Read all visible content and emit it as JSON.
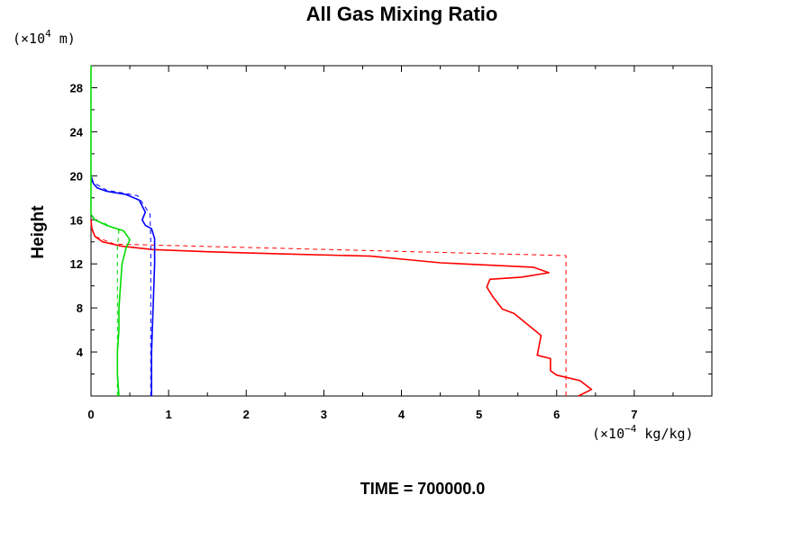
{
  "chart_data": {
    "type": "line",
    "title": "All Gas Mixing Ratio",
    "ylabel": "Height",
    "y_unit": {
      "prefix": "(×10",
      "exp": "4",
      "suffix": " m)"
    },
    "x_unit": {
      "prefix": "(×10",
      "exp": "−4",
      "suffix": " kg/kg)"
    },
    "footer": "TIME = 700000.0",
    "xlim": [
      0,
      8
    ],
    "ylim": [
      0,
      30
    ],
    "x_tick_labels": [
      "0",
      "1",
      "2",
      "3",
      "4",
      "5",
      "6",
      "7"
    ],
    "y_tick_labels": [
      "4",
      "8",
      "12",
      "16",
      "20",
      "24",
      "28"
    ],
    "grid": false,
    "series": [
      {
        "color": "#ff0000",
        "style": "solid",
        "points": [
          [
            6.28,
            0
          ],
          [
            6.45,
            0.6
          ],
          [
            6.3,
            1.4
          ],
          [
            6.0,
            1.9
          ],
          [
            5.92,
            2.3
          ],
          [
            5.92,
            3.4
          ],
          [
            5.75,
            3.7
          ],
          [
            5.8,
            5.5
          ],
          [
            5.45,
            7.5
          ],
          [
            5.3,
            7.9
          ],
          [
            5.18,
            9.0
          ],
          [
            5.1,
            9.9
          ],
          [
            5.14,
            10.6
          ],
          [
            5.55,
            10.8
          ],
          [
            5.9,
            11.2
          ],
          [
            5.7,
            11.7
          ],
          [
            4.5,
            12.1
          ],
          [
            4.2,
            12.3
          ],
          [
            3.6,
            12.7
          ],
          [
            2.5,
            12.9
          ],
          [
            1.5,
            13.1
          ],
          [
            0.8,
            13.3
          ],
          [
            0.4,
            13.6
          ],
          [
            0.15,
            14.0
          ],
          [
            0.05,
            14.5
          ],
          [
            0.01,
            15.2
          ],
          [
            0.0,
            16.0
          ]
        ]
      },
      {
        "color": "#ff0000",
        "style": "dashed",
        "points": [
          [
            6.12,
            0
          ],
          [
            6.12,
            12.75
          ],
          [
            0.3,
            13.8
          ],
          [
            0.05,
            14.5
          ],
          [
            0.0,
            15.5
          ]
        ]
      },
      {
        "color": "#0000ff",
        "style": "solid",
        "points": [
          [
            0.78,
            0
          ],
          [
            0.78,
            4
          ],
          [
            0.8,
            8
          ],
          [
            0.82,
            12
          ],
          [
            0.82,
            14.3
          ],
          [
            0.78,
            15.2
          ],
          [
            0.7,
            15.5
          ],
          [
            0.66,
            16.0
          ],
          [
            0.7,
            16.7
          ],
          [
            0.62,
            17.8
          ],
          [
            0.45,
            18.3
          ],
          [
            0.2,
            18.6
          ],
          [
            0.08,
            18.9
          ],
          [
            0.03,
            19.3
          ],
          [
            0.0,
            20.0
          ]
        ]
      },
      {
        "color": "#0000ff",
        "style": "dashed",
        "points": [
          [
            0.77,
            0
          ],
          [
            0.77,
            14.0
          ],
          [
            0.76,
            16.5
          ],
          [
            0.6,
            18.2
          ],
          [
            0.2,
            18.7
          ],
          [
            0.0,
            19.5
          ]
        ]
      },
      {
        "color": "#00dd00",
        "style": "solid",
        "points": [
          [
            0.36,
            0
          ],
          [
            0.34,
            2
          ],
          [
            0.34,
            4
          ],
          [
            0.36,
            6
          ],
          [
            0.36,
            8
          ],
          [
            0.38,
            10
          ],
          [
            0.4,
            12
          ],
          [
            0.45,
            13.4
          ],
          [
            0.5,
            14.2
          ],
          [
            0.42,
            15.0
          ],
          [
            0.2,
            15.5
          ],
          [
            0.05,
            16.0
          ],
          [
            0.0,
            16.5
          ],
          [
            0.0,
            30
          ]
        ]
      },
      {
        "color": "#00dd00",
        "style": "dashed",
        "points": [
          [
            0.34,
            0
          ],
          [
            0.34,
            13.5
          ],
          [
            0.36,
            15.0
          ],
          [
            0.2,
            15.6
          ],
          [
            0.05,
            16.0
          ],
          [
            0.0,
            16.5
          ]
        ]
      }
    ]
  }
}
